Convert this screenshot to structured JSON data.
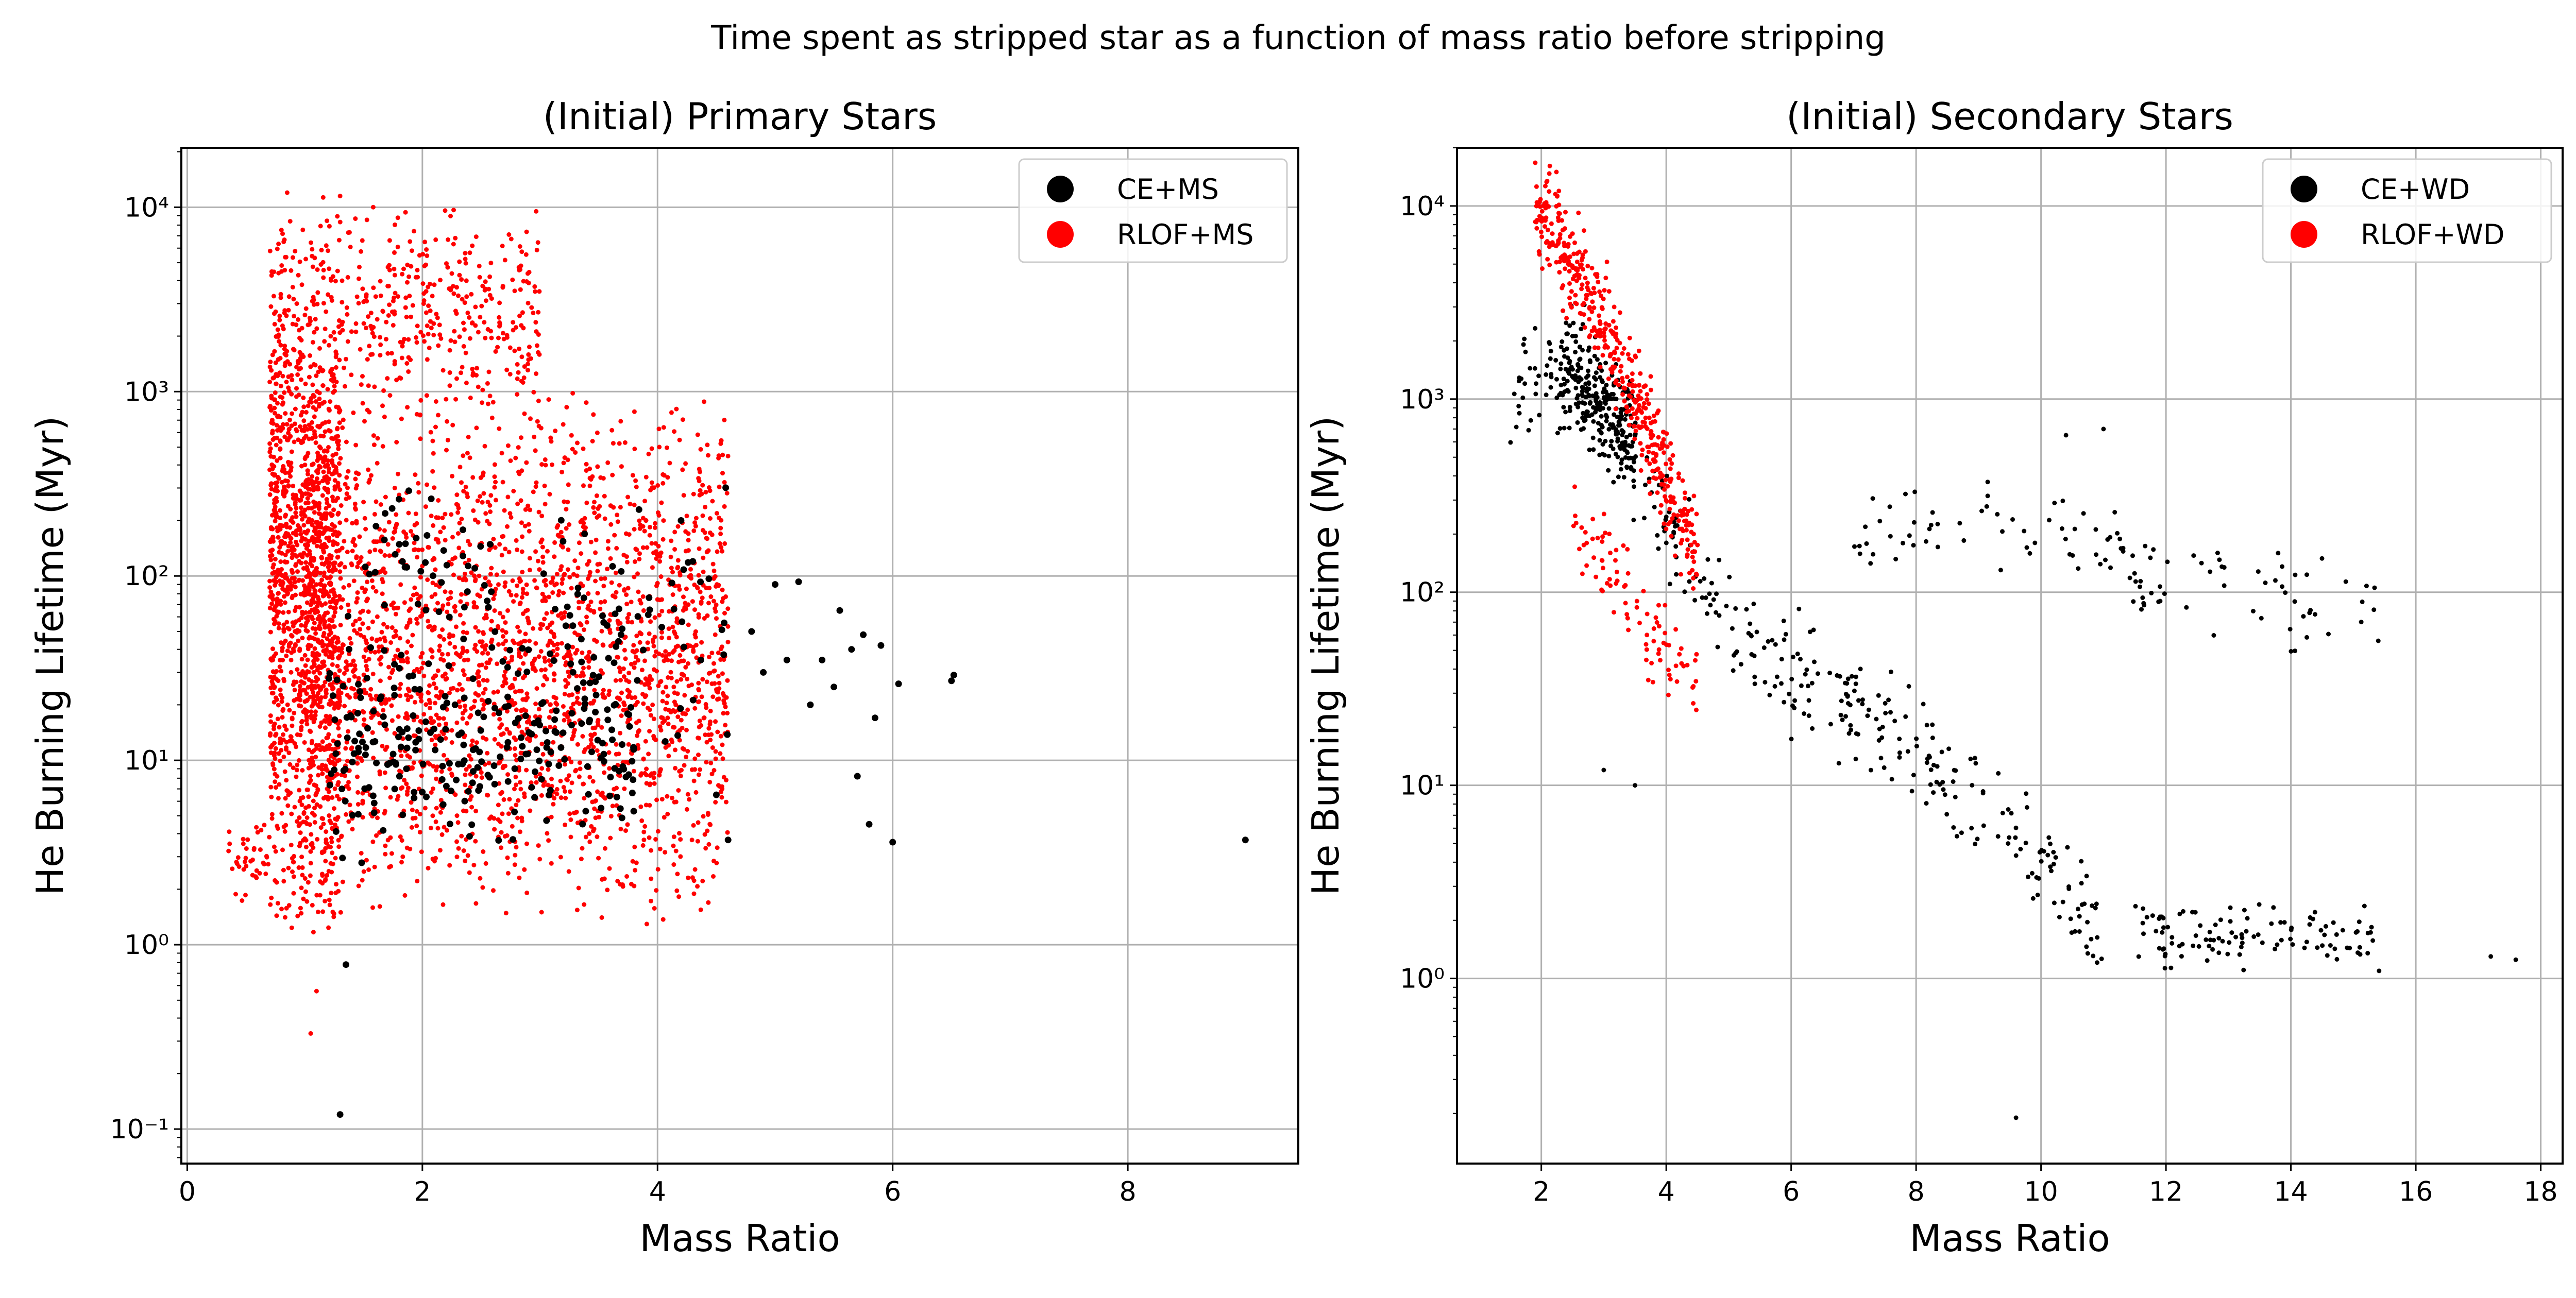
{
  "suptitle": "Time spent as stripped star as a function of mass ratio before stripping",
  "chart_data": [
    {
      "type": "scatter",
      "title": "(Initial) Primary Stars",
      "xlabel": "Mass Ratio",
      "ylabel": "He Burning Lifetime (Myr)",
      "xlim": [
        -0.05,
        9.45
      ],
      "ylim": [
        0.065,
        21000
      ],
      "yscale": "log",
      "xticks": [
        0,
        2,
        4,
        6,
        8
      ],
      "xtick_labels": [
        "0",
        "2",
        "4",
        "6",
        "8"
      ],
      "yticks": [
        0.1,
        1,
        10,
        100,
        1000,
        10000
      ],
      "ytick_labels": [
        "10⁻¹",
        "10⁰",
        "10¹",
        "10²",
        "10³",
        "10⁴"
      ],
      "grid": true,
      "legend": "top-right",
      "series": [
        {
          "name": "CE+MS",
          "color": "#000000",
          "marker_size": "medium",
          "clusters": [
            {
              "x": [
                1.2,
                3.8
              ],
              "log10y": [
                0.4,
                1.8
              ],
              "n": 260
            },
            {
              "x": [
                1.5,
                2.6
              ],
              "log10y": [
                1.7,
                2.5
              ],
              "n": 40
            },
            {
              "x": [
                3.0,
                4.6
              ],
              "log10y": [
                1.0,
                2.5
              ],
              "n": 60
            }
          ],
          "points": [
            {
              "x": 1.3,
              "y": 0.12
            },
            {
              "x": 1.35,
              "y": 0.78
            },
            {
              "x": 4.2,
              "y": 200
            },
            {
              "x": 4.3,
              "y": 120
            },
            {
              "x": 4.5,
              "y": 6.5
            },
            {
              "x": 4.6,
              "y": 3.7
            },
            {
              "x": 4.8,
              "y": 50
            },
            {
              "x": 4.9,
              "y": 30
            },
            {
              "x": 5.0,
              "y": 90
            },
            {
              "x": 5.1,
              "y": 35
            },
            {
              "x": 5.2,
              "y": 93
            },
            {
              "x": 5.3,
              "y": 20
            },
            {
              "x": 5.4,
              "y": 35
            },
            {
              "x": 5.5,
              "y": 25
            },
            {
              "x": 5.55,
              "y": 65
            },
            {
              "x": 5.65,
              "y": 40
            },
            {
              "x": 5.7,
              "y": 8.2
            },
            {
              "x": 5.75,
              "y": 48
            },
            {
              "x": 5.8,
              "y": 4.5
            },
            {
              "x": 5.85,
              "y": 17
            },
            {
              "x": 5.9,
              "y": 42
            },
            {
              "x": 6.0,
              "y": 3.6
            },
            {
              "x": 6.05,
              "y": 26
            },
            {
              "x": 6.5,
              "y": 27
            },
            {
              "x": 6.52,
              "y": 29
            },
            {
              "x": 9.0,
              "y": 3.7
            }
          ]
        },
        {
          "name": "RLOF+MS",
          "color": "#ff0000",
          "marker_size": "small",
          "clusters": [
            {
              "x": [
                0.7,
                1.3
              ],
              "log10y": [
                0.0,
                4.1
              ],
              "n": 1400
            },
            {
              "x": [
                1.0,
                4.6
              ],
              "log10y": [
                0.1,
                3.0
              ],
              "n": 2600
            },
            {
              "x": [
                1.3,
                3.0
              ],
              "log10y": [
                2.8,
                4.05
              ],
              "n": 350
            },
            {
              "x": [
                0.35,
                0.7
              ],
              "log10y": [
                0.2,
                0.7
              ],
              "n": 40
            }
          ],
          "points": [
            {
              "x": 1.05,
              "y": 0.33
            },
            {
              "x": 1.1,
              "y": 0.56
            },
            {
              "x": 0.85,
              "y": 12000
            },
            {
              "x": 1.3,
              "y": 11500
            }
          ]
        }
      ]
    },
    {
      "type": "scatter",
      "title": "(Initial) Secondary Stars",
      "xlabel": "Mass Ratio",
      "ylabel": "He Burning Lifetime (Myr)",
      "xlim": [
        0.65,
        18.35
      ],
      "ylim": [
        0.11,
        20000
      ],
      "yscale": "log",
      "xticks": [
        2,
        4,
        6,
        8,
        10,
        12,
        14,
        16,
        18
      ],
      "xtick_labels": [
        "2",
        "4",
        "6",
        "8",
        "10",
        "12",
        "14",
        "16",
        "18"
      ],
      "yticks": [
        1,
        10,
        100,
        1000,
        10000
      ],
      "ytick_labels": [
        "10⁰",
        "10¹",
        "10²",
        "10³",
        "10⁴"
      ],
      "grid": true,
      "legend": "top-right",
      "series": [
        {
          "name": "CE+WD",
          "color": "#000000",
          "marker_size": "small",
          "bands": [
            {
              "x": [
                1.5,
                11.0
              ],
              "center": [
                [
                  1.5,
                  3.0
                ],
                [
                  3.0,
                  3.0
                ],
                [
                  5.0,
                  1.8
                ],
                [
                  8.0,
                  1.2
                ],
                [
                  11.0,
                  0.3
                ]
              ],
              "spread": 0.2,
              "n": 350
            },
            {
              "x": [
                7.0,
                15.5
              ],
              "center": [
                [
                  7.0,
                  2.3
                ],
                [
                  9.0,
                  2.4
                ],
                [
                  12.0,
                  2.1
                ],
                [
                  15.0,
                  1.9
                ]
              ],
              "spread": 0.18,
              "n": 120
            },
            {
              "x": [
                11.5,
                15.5
              ],
              "center": [
                [
                  11.5,
                  0.2
                ],
                [
                  13.5,
                  0.25
                ],
                [
                  15.5,
                  0.18
                ]
              ],
              "spread": 0.12,
              "n": 110
            },
            {
              "x": [
                2.3,
                3.5
              ],
              "center": [
                [
                  2.3,
                  3.2
                ],
                [
                  3.5,
                  2.8
                ]
              ],
              "spread": 0.2,
              "n": 250
            }
          ],
          "points": [
            {
              "x": 9.6,
              "y": 0.19
            },
            {
              "x": 17.2,
              "y": 1.3
            },
            {
              "x": 17.6,
              "y": 1.25
            },
            {
              "x": 3.0,
              "y": 12
            },
            {
              "x": 3.5,
              "y": 10
            },
            {
              "x": 11.0,
              "y": 700
            },
            {
              "x": 10.4,
              "y": 650
            }
          ]
        },
        {
          "name": "RLOF+WD",
          "color": "#ff0000",
          "marker_size": "small",
          "bands": [
            {
              "x": [
                1.9,
                4.5
              ],
              "center": [
                [
                  1.9,
                  4.0
                ],
                [
                  2.7,
                  3.6
                ],
                [
                  3.5,
                  3.0
                ],
                [
                  4.5,
                  2.2
                ]
              ],
              "spread": 0.2,
              "n": 450
            },
            {
              "x": [
                2.5,
                4.5
              ],
              "center": [
                [
                  2.5,
                  2.4
                ],
                [
                  3.5,
                  1.9
                ],
                [
                  4.3,
                  1.6
                ]
              ],
              "spread": 0.15,
              "n": 90
            }
          ],
          "points": []
        }
      ]
    }
  ]
}
